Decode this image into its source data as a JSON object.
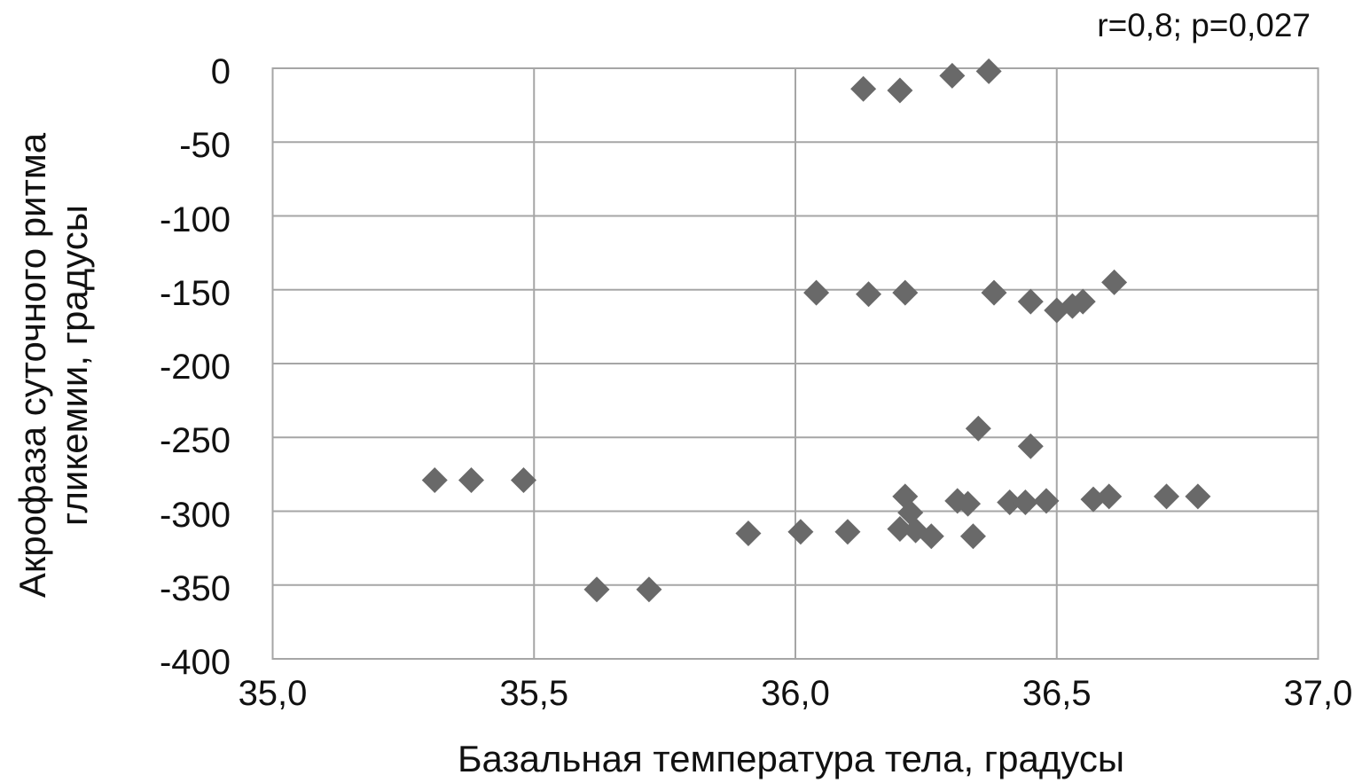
{
  "chart_data": {
    "type": "scatter",
    "annotation": "r=0,8; p=0,027",
    "xlabel": "Базальная температура тела, градусы",
    "ylabel": "Акрофаза суточного ритма гликемии, градусы",
    "ylabel_lines": [
      "Акрофаза суточного ритма",
      "гликемии, градусы"
    ],
    "xlim": [
      35.0,
      37.0
    ],
    "ylim": [
      -400,
      0
    ],
    "grid": true,
    "legend": "none",
    "xticks": [
      {
        "label": "35,0",
        "value": 35.0
      },
      {
        "label": "35,5",
        "value": 35.5
      },
      {
        "label": "36,0",
        "value": 36.0
      },
      {
        "label": "36,5",
        "value": 36.5
      },
      {
        "label": "37,0",
        "value": 37.0
      }
    ],
    "yticks": [
      {
        "label": "0",
        "value": 0
      },
      {
        "label": "-50",
        "value": -50
      },
      {
        "label": "-100",
        "value": -100
      },
      {
        "label": "-150",
        "value": -150
      },
      {
        "label": "-200",
        "value": -200
      },
      {
        "label": "-250",
        "value": -250
      },
      {
        "label": "-300",
        "value": -300
      },
      {
        "label": "-350",
        "value": -350
      },
      {
        "label": "-400",
        "value": -400
      }
    ],
    "points": [
      [
        36.13,
        -14
      ],
      [
        36.2,
        -15
      ],
      [
        36.3,
        -5
      ],
      [
        36.37,
        -2
      ],
      [
        36.04,
        -152
      ],
      [
        36.14,
        -153
      ],
      [
        36.21,
        -152
      ],
      [
        36.38,
        -152
      ],
      [
        36.45,
        -158
      ],
      [
        36.5,
        -164
      ],
      [
        36.53,
        -161
      ],
      [
        36.55,
        -158
      ],
      [
        36.61,
        -145
      ],
      [
        35.31,
        -279
      ],
      [
        35.38,
        -279
      ],
      [
        35.48,
        -279
      ],
      [
        35.62,
        -353
      ],
      [
        35.72,
        -353
      ],
      [
        35.91,
        -315
      ],
      [
        36.01,
        -314
      ],
      [
        36.1,
        -314
      ],
      [
        36.21,
        -290
      ],
      [
        36.22,
        -301
      ],
      [
        36.2,
        -312
      ],
      [
        36.23,
        -313
      ],
      [
        36.26,
        -317
      ],
      [
        36.35,
        -244
      ],
      [
        36.45,
        -256
      ],
      [
        36.31,
        -293
      ],
      [
        36.33,
        -295
      ],
      [
        36.34,
        -317
      ],
      [
        36.41,
        -294
      ],
      [
        36.44,
        -294
      ],
      [
        36.48,
        -293
      ],
      [
        36.57,
        -292
      ],
      [
        36.6,
        -290
      ],
      [
        36.71,
        -290
      ],
      [
        36.77,
        -290
      ]
    ],
    "marker": {
      "shape": "diamond",
      "color": "#696969",
      "size": 29
    },
    "colors": {
      "grid": "#a6a6a6",
      "plot_border": "#a6a6a6",
      "text": "#111111",
      "background": "#ffffff"
    }
  }
}
